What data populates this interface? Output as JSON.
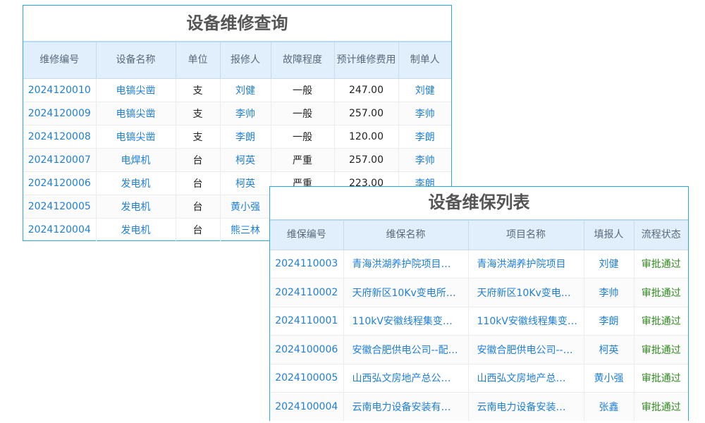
{
  "repair": {
    "title": "设备维修查询",
    "headers": [
      "维修编号",
      "设备名称",
      "单位",
      "报修人",
      "故障程度",
      "预计维修费用",
      "制单人"
    ],
    "rows": [
      [
        "2024120010",
        "电镐尖凿",
        "支",
        "刘健",
        "一般",
        "247.00",
        "刘健"
      ],
      [
        "2024120009",
        "电镐尖凿",
        "支",
        "李帅",
        "一般",
        "257.00",
        "李帅"
      ],
      [
        "2024120008",
        "电镐尖凿",
        "支",
        "李朗",
        "一般",
        "120.00",
        "李朗"
      ],
      [
        "2024120007",
        "电焊机",
        "台",
        "柯英",
        "严重",
        "257.00",
        "李帅"
      ],
      [
        "2024120006",
        "发电机",
        "台",
        "柯英",
        "严重",
        "223.00",
        "李朗"
      ],
      [
        "2024120005",
        "发电机",
        "台",
        "黄小强",
        "",
        "",
        ""
      ],
      [
        "2024120004",
        "发电机",
        "台",
        "熊三林",
        "",
        "",
        ""
      ]
    ]
  },
  "maint": {
    "title": "设备维保列表",
    "headers": [
      "维保编号",
      "维保名称",
      "项目名称",
      "填报人",
      "流程状态"
    ],
    "rows": [
      [
        "2024110003",
        "青海洪湖养护院项目…",
        "青海洪湖养护院项目",
        "刘健",
        "审批通过"
      ],
      [
        "2024110002",
        "天府新区10Kv变电所…",
        "天府新区10Kv变电…",
        "李帅",
        "审批通过"
      ],
      [
        "2024110001",
        "110kV安徽线程集变…",
        "110kV安徽线程集变…",
        "李朗",
        "审批通过"
      ],
      [
        "2024100006",
        "安徽合肥供电公司--配…",
        "安徽合肥供电公司--…",
        "柯英",
        "审批通过"
      ],
      [
        "2024100005",
        "山西弘文房地产总公…",
        "山西弘文房地产总…",
        "黄小强",
        "审批通过"
      ],
      [
        "2024100004",
        "云南电力设备安装有…",
        "云南电力设备安装…",
        "张鑫",
        "审批通过"
      ]
    ]
  },
  "colors": {
    "border": "#29a9e8",
    "header_bg": "#e1effc",
    "link": "#1f7fd8",
    "status_ok": "#2f8a1f"
  }
}
